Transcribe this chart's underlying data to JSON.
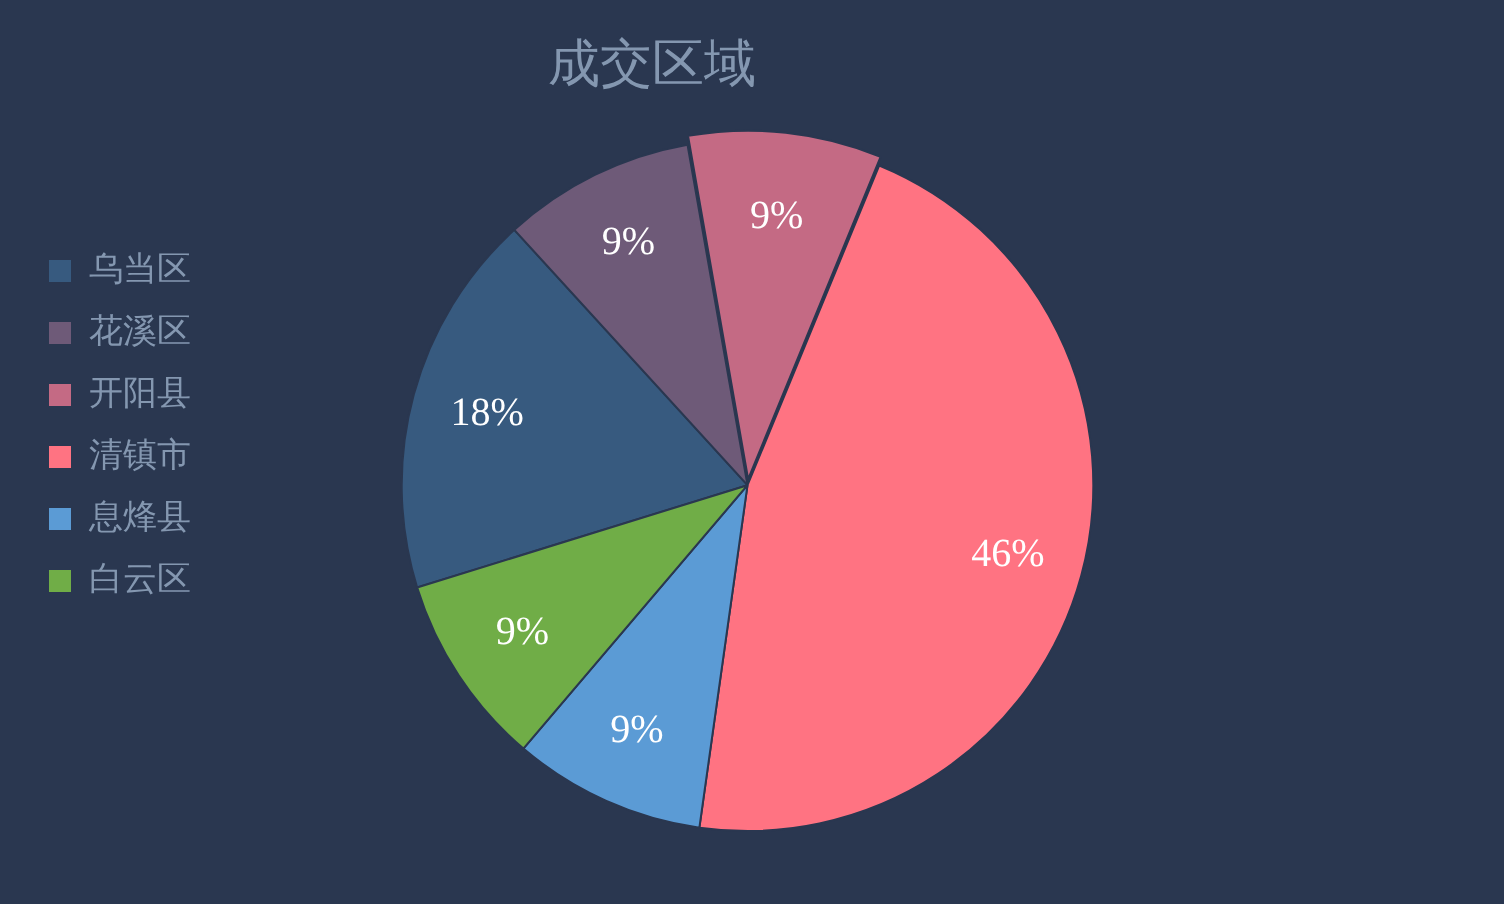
{
  "chart_data": {
    "type": "pie",
    "title": "成交区域",
    "categories": [
      "乌当区",
      "花溪区",
      "开阳县",
      "清镇市",
      "息烽县",
      "白云区"
    ],
    "values": [
      18,
      9,
      9,
      46,
      9,
      9
    ],
    "colors": [
      "#375a7f",
      "#6e5a78",
      "#c46a84",
      "#ff7382",
      "#5b9bd5",
      "#70ad47"
    ],
    "value_labels": [
      "18%",
      "9%",
      "9%",
      "46%",
      "9%",
      "9%"
    ],
    "legend": "left"
  }
}
